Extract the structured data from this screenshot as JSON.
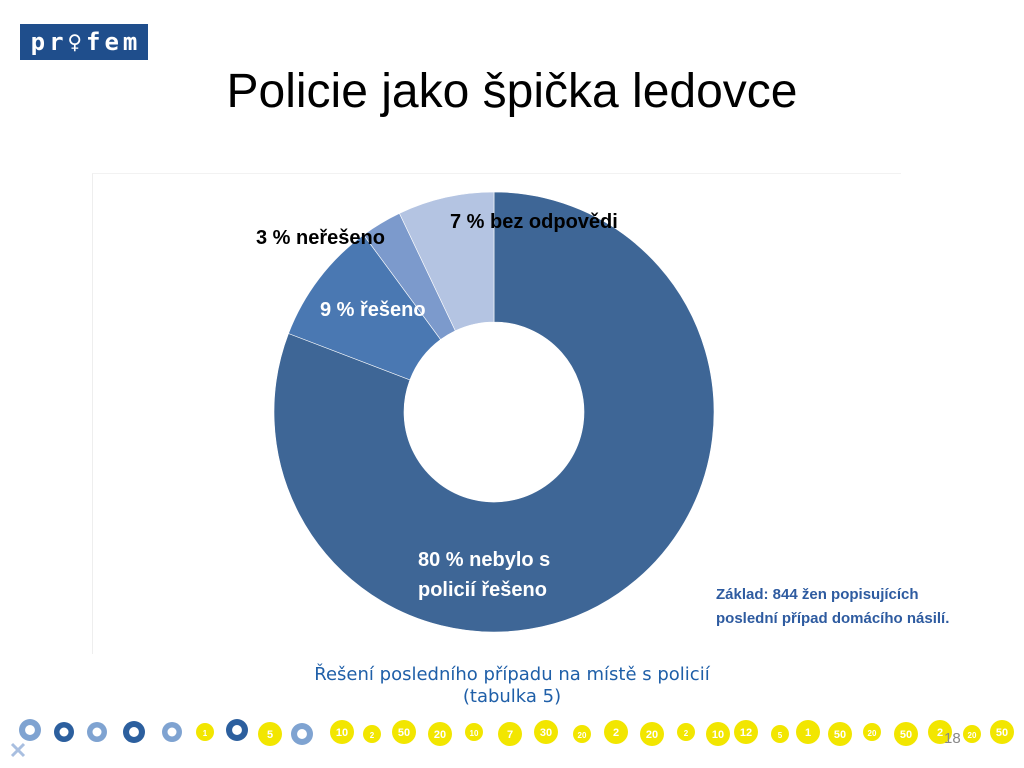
{
  "logo": {
    "letters": [
      "p",
      "r",
      "♀",
      "f",
      "e",
      "m"
    ]
  },
  "title": "Policie jako špička ledovce",
  "chart_data": {
    "type": "pie",
    "style": "donut",
    "categories": [
      "80 % nebylo s policií řešeno",
      "9 % řešeno",
      "3 % neřešeno",
      "7 % bez odpovědi"
    ],
    "values": [
      80,
      9,
      3,
      7
    ],
    "unit": "%",
    "colors": [
      "#3e6696",
      "#4a78b2",
      "#7c9acc",
      "#b4c4e2"
    ],
    "labels": [
      {
        "lines": [
          "80 % nebylo s",
          "policií řešeno"
        ],
        "color": "#ffffff"
      },
      {
        "lines": [
          "9 % řešeno"
        ],
        "color": "#ffffff"
      },
      {
        "lines": [
          "3 % neřešeno"
        ],
        "color": "#000000"
      },
      {
        "lines": [
          "7 % bez odpovědi"
        ],
        "color": "#000000"
      }
    ],
    "caption_line1": "Řešení posledního případu na místě s policií",
    "caption_line2": "(tabulka 5)"
  },
  "note": {
    "line1": "Základ: 844 žen popisujících",
    "line2": "poslední případ domácího násilí."
  },
  "footer": {
    "page_number": "18",
    "badge_numbers": [
      "1",
      "5",
      "10",
      "2",
      "50",
      "20",
      "10",
      "7",
      "30",
      "20",
      "2",
      "20",
      "2",
      "10",
      "12",
      "5",
      "1",
      "50",
      "20",
      "50",
      "2",
      "20",
      "50"
    ]
  },
  "colors": {
    "accent": "#1f4e8c",
    "note": "#2e5ba0",
    "badge": "#f2e600"
  }
}
